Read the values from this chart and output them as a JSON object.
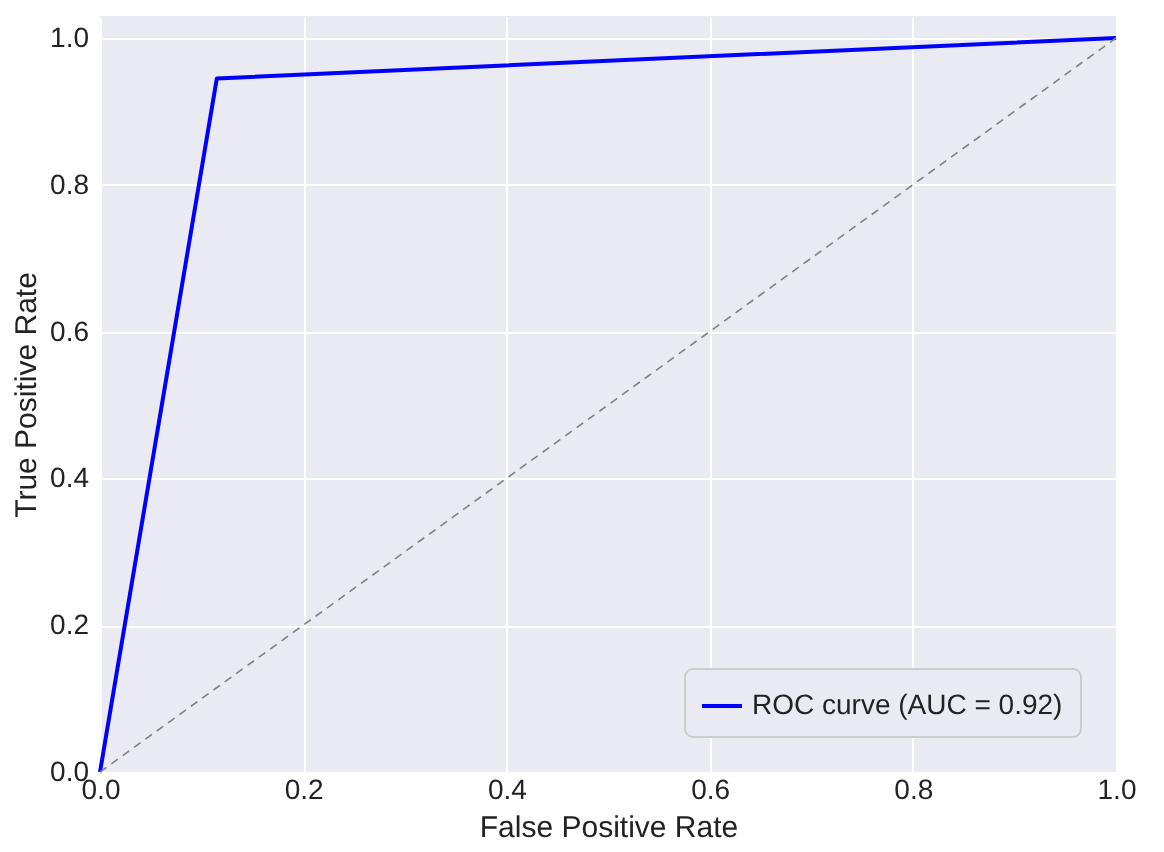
{
  "chart_data": {
    "type": "line",
    "xlabel": "False Positive Rate",
    "ylabel": "True Positive Rate",
    "series": [
      {
        "name": "ROC curve (AUC = 0.92)",
        "color": "#0000ff",
        "x": [
          0,
          0.115,
          1
        ],
        "values": [
          0,
          0.945,
          1
        ],
        "line_style": "solid"
      },
      {
        "color": "#808080",
        "x": [
          0,
          1
        ],
        "values": [
          0,
          1
        ],
        "line_style": "dashed"
      }
    ],
    "xlim": [
      0,
      1
    ],
    "ylim": [
      0,
      1.03
    ],
    "xticks": [
      {
        "value": 0,
        "label": "0.0"
      },
      {
        "value": 0.2,
        "label": "0.2"
      },
      {
        "value": 0.4,
        "label": "0.4"
      },
      {
        "value": 0.6,
        "label": "0.6"
      },
      {
        "value": 0.8,
        "label": "0.8"
      },
      {
        "value": 1,
        "label": "1.0"
      }
    ],
    "yticks": [
      {
        "value": 0,
        "label": "0.0"
      },
      {
        "value": 0.2,
        "label": "0.2"
      },
      {
        "value": 0.4,
        "label": "0.4"
      },
      {
        "value": 0.6,
        "label": "0.6"
      },
      {
        "value": 0.8,
        "label": "0.8"
      },
      {
        "value": 1,
        "label": "1.0"
      }
    ],
    "grid": true,
    "legend": "bottom right",
    "marker": "none"
  }
}
